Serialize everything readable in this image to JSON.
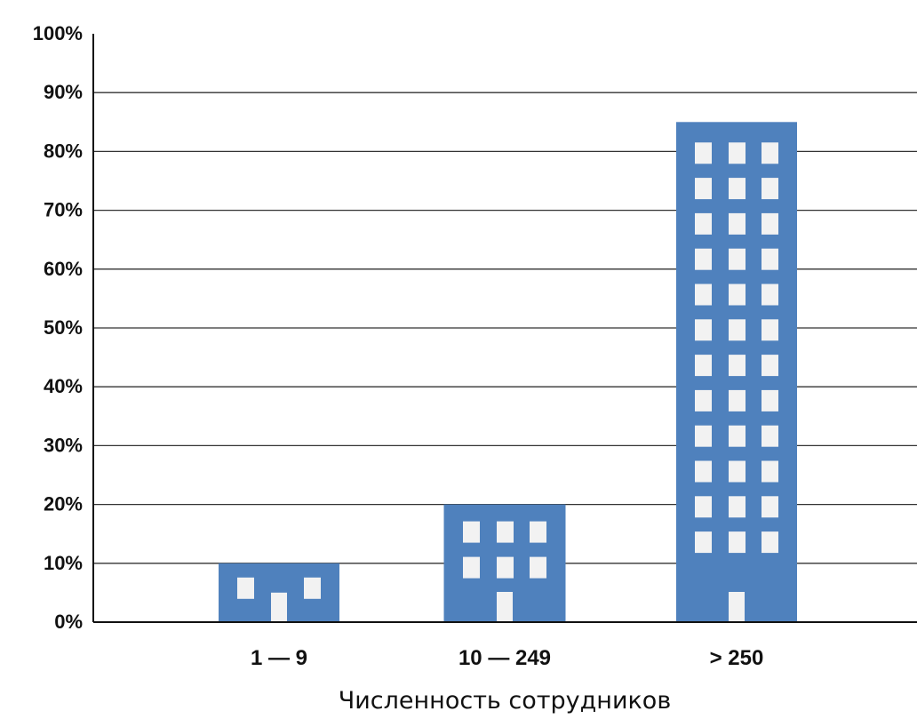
{
  "chart_data": {
    "type": "bar",
    "categories": [
      "1 — 9",
      "10 — 249",
      "> 250"
    ],
    "values": [
      10,
      20,
      85
    ],
    "xlabel": "Численность сотрудников",
    "ylabel": "",
    "ylim": [
      0,
      100
    ],
    "yticks": [
      "0%",
      "10%",
      "20%",
      "30%",
      "40%",
      "50%",
      "60%",
      "70%",
      "80%",
      "90%",
      "100%"
    ],
    "grid": true,
    "bar_style": "building",
    "colors": {
      "bar": "#4f81bd",
      "window": "#f2f2f2",
      "grid": "#333333"
    }
  }
}
